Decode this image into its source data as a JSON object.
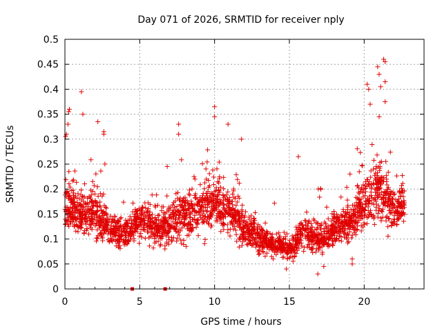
{
  "chart_data": {
    "type": "scatter",
    "title": "Day 071 of 2026, SRMTID for receiver nply",
    "xlabel": "GPS time / hours",
    "ylabel": "SRMTID / TECUs",
    "xlim": [
      0,
      24
    ],
    "ylim": [
      0,
      0.5
    ],
    "x_ticks": [
      0,
      5,
      10,
      15,
      20
    ],
    "x_tick_labels": [
      "0",
      "5",
      "10",
      "15",
      "20"
    ],
    "y_ticks": [
      0,
      0.05,
      0.1,
      0.15,
      0.2,
      0.25,
      0.3,
      0.35,
      0.4,
      0.45,
      0.5
    ],
    "y_tick_labels": [
      "0",
      "0.05",
      "0.1",
      "0.15",
      "0.2",
      "0.25",
      "0.3",
      "0.35",
      "0.4",
      "0.45",
      "0.5"
    ],
    "grid": true,
    "marker": "+",
    "color": "#e00000",
    "x_range_of_data": [
      0,
      22.7
    ],
    "generation": "approximate density profile digitized from the figure",
    "trend_profile": [
      {
        "x": 0.0,
        "center": 0.17,
        "spread": 0.06
      },
      {
        "x": 1.0,
        "center": 0.15,
        "spread": 0.06
      },
      {
        "x": 2.0,
        "center": 0.15,
        "spread": 0.07
      },
      {
        "x": 3.0,
        "center": 0.12,
        "spread": 0.05
      },
      {
        "x": 4.0,
        "center": 0.11,
        "spread": 0.04
      },
      {
        "x": 5.0,
        "center": 0.14,
        "spread": 0.05
      },
      {
        "x": 6.0,
        "center": 0.12,
        "spread": 0.05
      },
      {
        "x": 7.0,
        "center": 0.13,
        "spread": 0.06
      },
      {
        "x": 8.0,
        "center": 0.15,
        "spread": 0.07
      },
      {
        "x": 9.0,
        "center": 0.16,
        "spread": 0.07
      },
      {
        "x": 10.0,
        "center": 0.17,
        "spread": 0.07
      },
      {
        "x": 11.0,
        "center": 0.16,
        "spread": 0.07
      },
      {
        "x": 12.0,
        "center": 0.12,
        "spread": 0.05
      },
      {
        "x": 13.0,
        "center": 0.1,
        "spread": 0.04
      },
      {
        "x": 14.0,
        "center": 0.09,
        "spread": 0.03
      },
      {
        "x": 15.0,
        "center": 0.08,
        "spread": 0.03
      },
      {
        "x": 16.0,
        "center": 0.11,
        "spread": 0.05
      },
      {
        "x": 17.0,
        "center": 0.1,
        "spread": 0.05
      },
      {
        "x": 18.0,
        "center": 0.12,
        "spread": 0.05
      },
      {
        "x": 19.0,
        "center": 0.13,
        "spread": 0.05
      },
      {
        "x": 20.0,
        "center": 0.17,
        "spread": 0.07
      },
      {
        "x": 21.0,
        "center": 0.2,
        "spread": 0.09
      },
      {
        "x": 22.0,
        "center": 0.16,
        "spread": 0.06
      },
      {
        "x": 22.7,
        "center": 0.17,
        "spread": 0.05
      }
    ],
    "highlight_points": [
      {
        "x": 0.1,
        "y": 0.31
      },
      {
        "x": 0.2,
        "y": 0.33
      },
      {
        "x": 0.3,
        "y": 0.36
      },
      {
        "x": 0.25,
        "y": 0.355
      },
      {
        "x": 1.1,
        "y": 0.395
      },
      {
        "x": 1.2,
        "y": 0.35
      },
      {
        "x": 2.2,
        "y": 0.335
      },
      {
        "x": 2.6,
        "y": 0.315
      },
      {
        "x": 2.6,
        "y": 0.31
      },
      {
        "x": 7.6,
        "y": 0.33
      },
      {
        "x": 7.6,
        "y": 0.31
      },
      {
        "x": 10.0,
        "y": 0.365
      },
      {
        "x": 10.0,
        "y": 0.345
      },
      {
        "x": 10.9,
        "y": 0.33
      },
      {
        "x": 11.8,
        "y": 0.3
      },
      {
        "x": 15.6,
        "y": 0.265
      },
      {
        "x": 19.2,
        "y": 0.06
      },
      {
        "x": 20.2,
        "y": 0.41
      },
      {
        "x": 20.3,
        "y": 0.4
      },
      {
        "x": 20.4,
        "y": 0.37
      },
      {
        "x": 20.9,
        "y": 0.445
      },
      {
        "x": 21.0,
        "y": 0.43
      },
      {
        "x": 21.1,
        "y": 0.405
      },
      {
        "x": 21.3,
        "y": 0.46
      },
      {
        "x": 21.4,
        "y": 0.455
      },
      {
        "x": 21.4,
        "y": 0.415
      },
      {
        "x": 21.4,
        "y": 0.375
      },
      {
        "x": 21.0,
        "y": 0.345
      },
      {
        "x": 16.9,
        "y": 0.03
      },
      {
        "x": 17.3,
        "y": 0.045
      },
      {
        "x": 14.8,
        "y": 0.04
      },
      {
        "x": 19.2,
        "y": 0.05
      }
    ],
    "zero_points": [
      {
        "x": 4.5,
        "y": 0.0
      },
      {
        "x": 6.7,
        "y": 0.0
      }
    ]
  }
}
